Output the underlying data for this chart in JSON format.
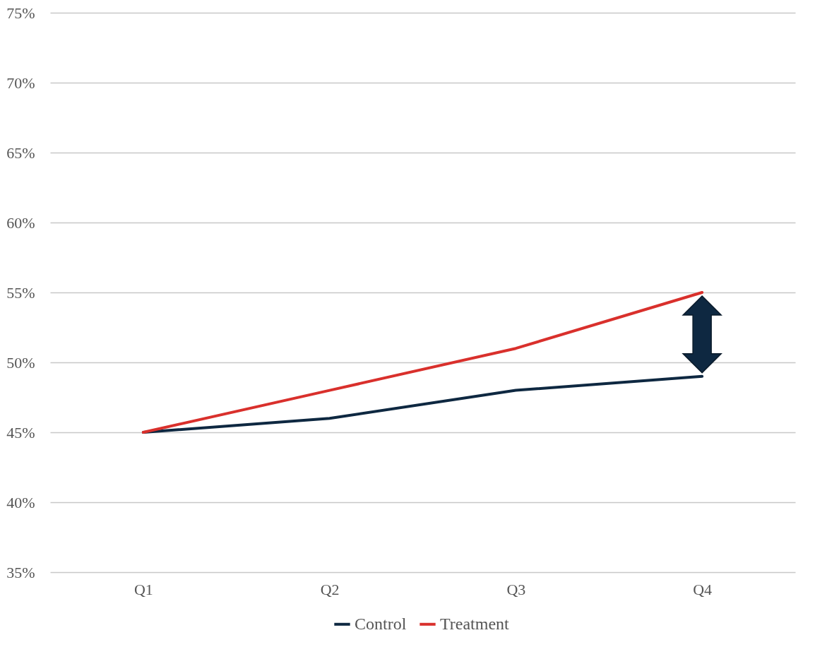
{
  "chart_data": {
    "type": "line",
    "categories": [
      "Q1",
      "Q2",
      "Q3",
      "Q4"
    ],
    "series": [
      {
        "name": "Control",
        "color": "#0e2841",
        "values": [
          45,
          46,
          48,
          49
        ]
      },
      {
        "name": "Treatment",
        "color": "#d9302c",
        "values": [
          45,
          48,
          51,
          55
        ]
      }
    ],
    "ylim": [
      35,
      75
    ],
    "yticks": [
      {
        "value": 35,
        "label": "35%"
      },
      {
        "value": 40,
        "label": "40%"
      },
      {
        "value": 45,
        "label": "45%"
      },
      {
        "value": 50,
        "label": "50%"
      },
      {
        "value": 55,
        "label": "55%"
      },
      {
        "value": 60,
        "label": "60%"
      },
      {
        "value": 65,
        "label": "65%"
      },
      {
        "value": 70,
        "label": "70%"
      },
      {
        "value": 75,
        "label": "75%"
      }
    ],
    "grid": "y",
    "legend": "bottom",
    "marker": "none",
    "line_style": "solid"
  }
}
